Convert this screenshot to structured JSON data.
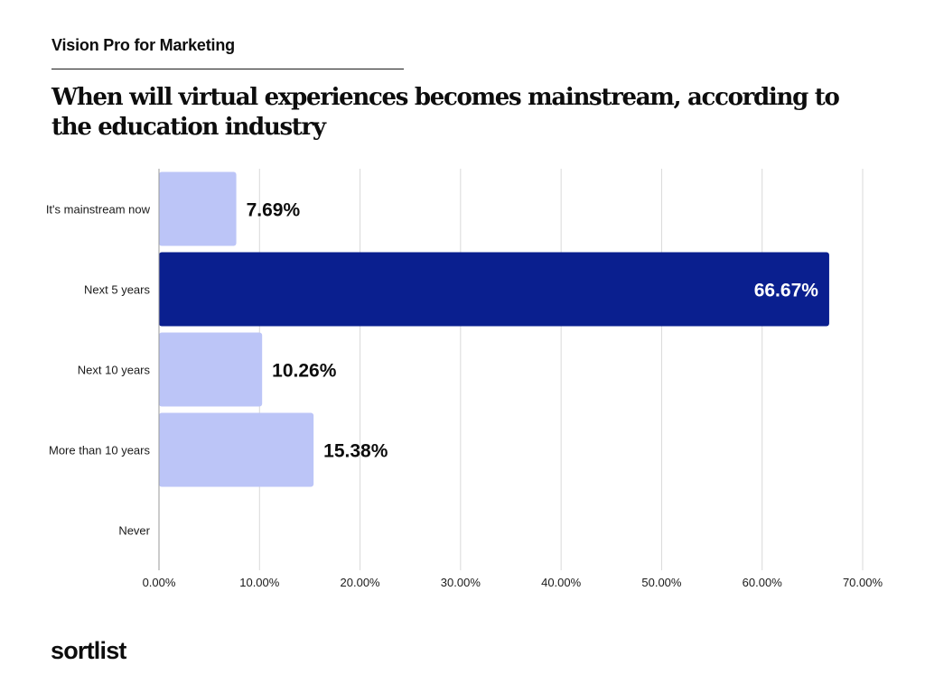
{
  "header": {
    "kicker": "Vision Pro for Marketing",
    "title": "When will virtual experiences becomes mainstream, according to the education industry"
  },
  "brand": {
    "logo_text": "sortlist"
  },
  "colors": {
    "highlight": "#0a1f8f",
    "bar": "#bcc5f7",
    "grid": "#d9d9d9"
  },
  "chart_data": {
    "type": "bar",
    "orientation": "horizontal",
    "categories": [
      "It's mainstream now",
      "Next 5 years",
      "Next 10 years",
      "More than 10 years",
      "Never"
    ],
    "values": [
      7.69,
      66.67,
      10.26,
      15.38,
      0
    ],
    "value_labels": [
      "7.69%",
      "66.67%",
      "10.26%",
      "15.38%",
      ""
    ],
    "highlight_index": 1,
    "xlim": [
      0,
      70
    ],
    "x_ticks": [
      0,
      10,
      20,
      30,
      40,
      50,
      60,
      70
    ],
    "x_tick_labels": [
      "0.00%",
      "10.00%",
      "20.00%",
      "30.00%",
      "40.00%",
      "50.00%",
      "60.00%",
      "70.00%"
    ],
    "grid": true,
    "legend": "none"
  }
}
